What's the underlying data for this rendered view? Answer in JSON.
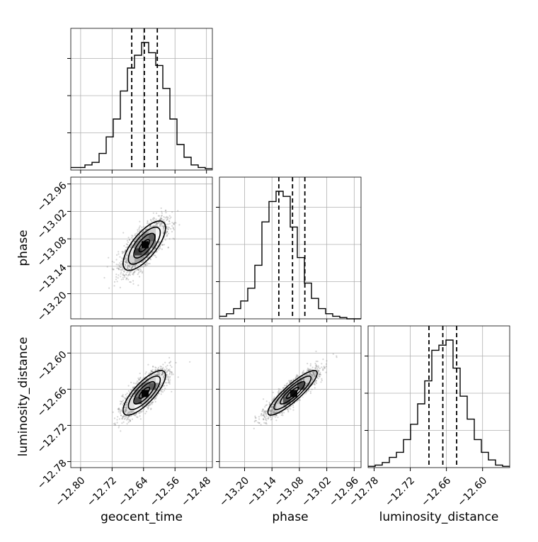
{
  "chart_data": {
    "type": "corner",
    "parameters": [
      "geocent_time",
      "phase",
      "luminosity_distance"
    ],
    "axis_labels": {
      "x": [
        "geocent_time",
        "phase",
        "luminosity_distance"
      ],
      "y": [
        "phase",
        "luminosity_distance"
      ]
    },
    "ranges": {
      "geocent_time": [
        -12.825,
        -12.465
      ],
      "phase": [
        -13.255,
        -12.945
      ],
      "luminosity_distance": [
        -12.79,
        -12.555
      ]
    },
    "ticks": {
      "geocent_time": [
        -12.8,
        -12.72,
        -12.64,
        -12.56,
        -12.48
      ],
      "phase": [
        -13.2,
        -13.14,
        -13.08,
        -13.02,
        -12.96
      ],
      "luminosity_distance": [
        -12.78,
        -12.72,
        -12.66,
        -12.6
      ]
    },
    "tick_labels": {
      "geocent_time": [
        "−12.80",
        "−12.72",
        "−12.64",
        "−12.56",
        "−12.48"
      ],
      "phase": [
        "−13.20",
        "−13.14",
        "−13.08",
        "−13.02",
        "−12.96"
      ],
      "luminosity_distance": [
        "−12.78",
        "−12.72",
        "−12.66",
        "−12.60"
      ]
    },
    "quantiles": {
      "geocent_time": [
        -12.67,
        -12.638,
        -12.605
      ],
      "phase": [
        -13.125,
        -13.095,
        -13.068
      ],
      "luminosity_distance": [
        -12.689,
        -12.666,
        -12.643
      ]
    },
    "histograms": {
      "geocent_time": {
        "edges_range": [
          -12.825,
          -12.465
        ],
        "counts": [
          0.02,
          0.02,
          0.04,
          0.06,
          0.13,
          0.26,
          0.4,
          0.62,
          0.8,
          0.9,
          1.0,
          0.92,
          0.82,
          0.64,
          0.4,
          0.2,
          0.1,
          0.04,
          0.02,
          0.01
        ]
      },
      "phase": {
        "edges_range": [
          -13.255,
          -12.945
        ],
        "counts": [
          0.02,
          0.04,
          0.08,
          0.14,
          0.24,
          0.42,
          0.76,
          0.92,
          1.0,
          0.96,
          0.72,
          0.48,
          0.28,
          0.16,
          0.08,
          0.04,
          0.02,
          0.01,
          0.0,
          0.0
        ]
      },
      "luminosity_distance": {
        "edges_range": [
          -12.79,
          -12.555
        ],
        "counts": [
          0.01,
          0.02,
          0.04,
          0.08,
          0.12,
          0.22,
          0.34,
          0.5,
          0.68,
          0.92,
          0.96,
          1.0,
          0.78,
          0.56,
          0.38,
          0.22,
          0.12,
          0.06,
          0.02,
          0.01
        ]
      }
    },
    "joint": [
      {
        "x": "geocent_time",
        "y": "phase",
        "mean": [
          -12.638,
          -13.095
        ],
        "std": [
          0.027,
          0.027
        ],
        "corr": 0.72
      },
      {
        "x": "geocent_time",
        "y": "luminosity_distance",
        "mean": [
          -12.638,
          -12.666
        ],
        "std": [
          0.027,
          0.0185
        ],
        "corr": 0.78
      },
      {
        "x": "phase",
        "y": "luminosity_distance",
        "mean": [
          -13.095,
          -12.666
        ],
        "std": [
          0.027,
          0.0185
        ],
        "corr": 0.88
      }
    ],
    "contour_levels_sigma": [
      0.5,
      1.0,
      1.5,
      2.0
    ],
    "grid": true,
    "colors": {
      "line": "#000000",
      "grid": "#b0b0b0",
      "points": "#888888"
    }
  }
}
